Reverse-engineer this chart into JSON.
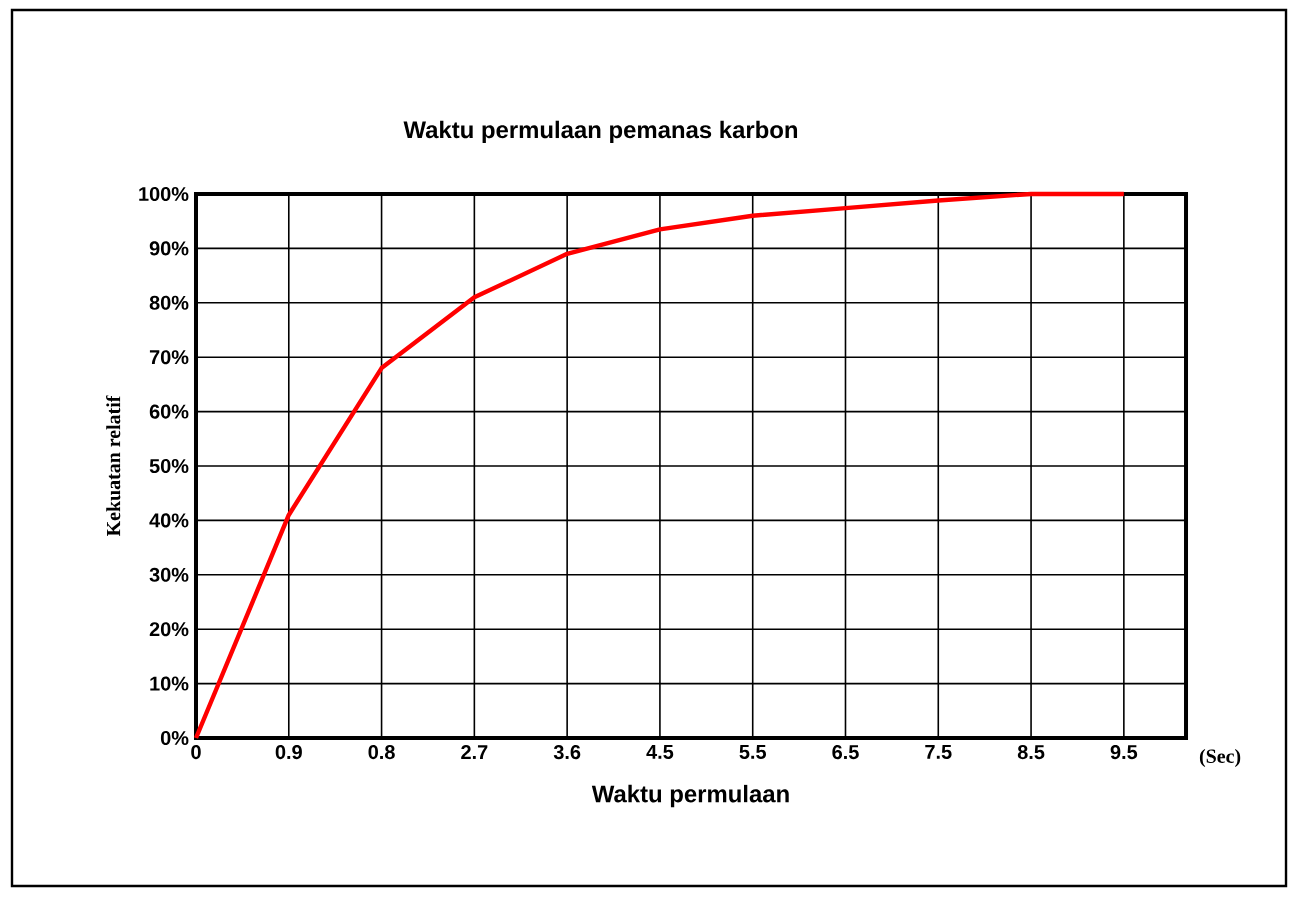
{
  "chart_data": {
    "type": "line",
    "title": "Waktu permulaan pemanas karbon",
    "xlabel": "Waktu permulaan",
    "ylabel": "Kekuatan relatif",
    "categories": [
      "0",
      "0.9",
      "0.8",
      "2.7",
      "3.6",
      "4.5",
      "5.5",
      "6.5",
      "7.5",
      "8.5",
      "9.5"
    ],
    "series": [
      {
        "color": "#ff0000",
        "values": [
          0,
          41,
          68,
          81,
          89,
          93.5,
          96,
          97.4,
          98.8,
          100,
          100
        ]
      }
    ],
    "ylim": [
      0,
      100
    ],
    "yticks": [
      {
        "value": 0,
        "label": "0%"
      },
      {
        "value": 10,
        "label": "10%"
      },
      {
        "value": 20,
        "label": "20%"
      },
      {
        "value": 30,
        "label": "30%"
      },
      {
        "value": 40,
        "label": "40%"
      },
      {
        "value": 50,
        "label": "50%"
      },
      {
        "value": 60,
        "label": "60%"
      },
      {
        "value": 70,
        "label": "70%"
      },
      {
        "value": 80,
        "label": "80%"
      },
      {
        "value": 90,
        "label": "90%"
      },
      {
        "value": 100,
        "label": "100%"
      }
    ],
    "grid": true,
    "marker": "none",
    "line_style": "solid",
    "annotations": [
      "(Sec)"
    ]
  }
}
